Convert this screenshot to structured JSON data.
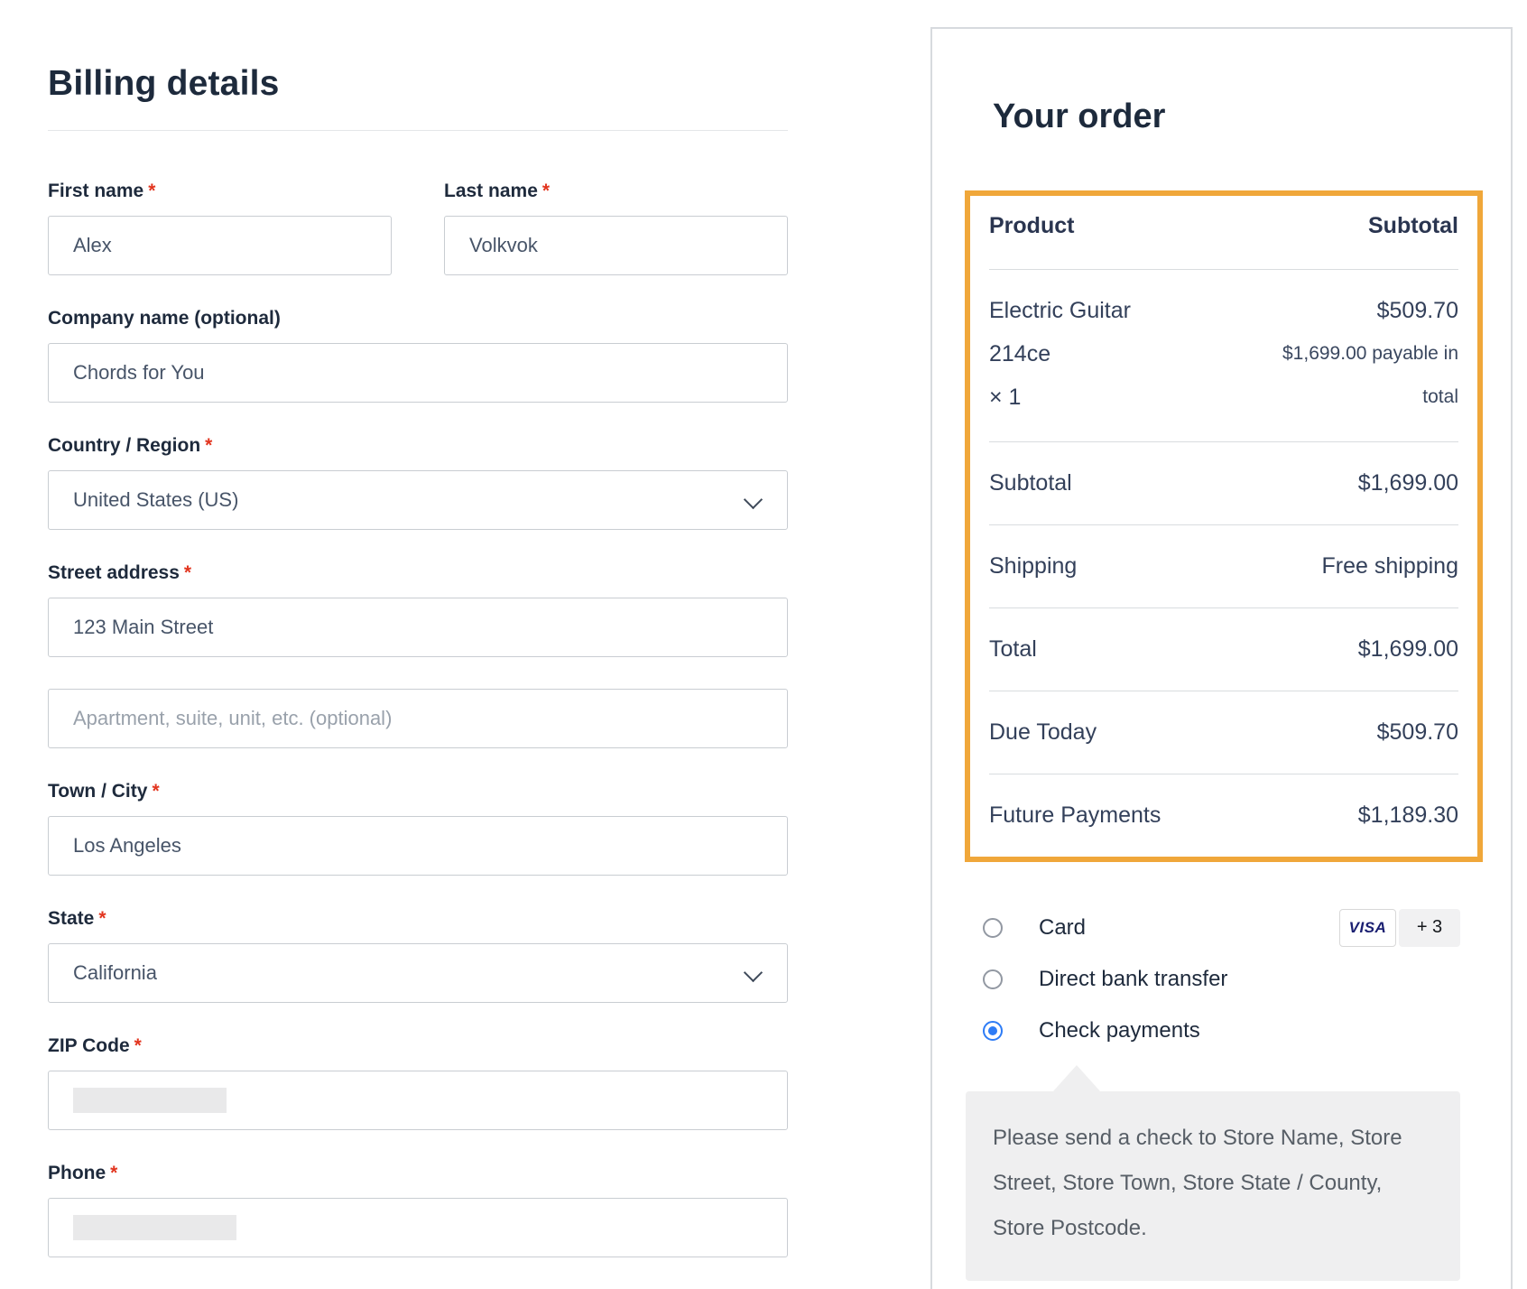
{
  "colors": {
    "accent_orange": "#f0a73a",
    "radio_selected_blue": "#2e7cf6",
    "required_red": "#e2351f",
    "visa_navy": "#1a1f71",
    "heading_navy": "#1d2a3c"
  },
  "billing": {
    "title": "Billing details",
    "required_mark": "*",
    "fields": [
      {
        "id": "first-name",
        "label": "First name",
        "required": true,
        "type": "text",
        "value": "Alex"
      },
      {
        "id": "last-name",
        "label": "Last name",
        "required": true,
        "type": "text",
        "value": "Volkvok"
      },
      {
        "id": "company",
        "label": "Company name (optional)",
        "required": false,
        "type": "text",
        "value": "Chords for You"
      },
      {
        "id": "country",
        "label": "Country / Region",
        "required": true,
        "type": "select",
        "value": "United States (US)"
      },
      {
        "id": "address-1",
        "label": "Street address",
        "required": true,
        "type": "text",
        "value": "123 Main Street"
      },
      {
        "id": "address-2",
        "label": "",
        "required": false,
        "type": "text",
        "value": "",
        "placeholder": "Apartment, suite, unit, etc. (optional)"
      },
      {
        "id": "city",
        "label": "Town / City",
        "required": true,
        "type": "text",
        "value": "Los Angeles"
      },
      {
        "id": "state",
        "label": "State",
        "required": true,
        "type": "select",
        "value": "California"
      },
      {
        "id": "zip",
        "label": "ZIP Code",
        "required": true,
        "type": "text",
        "value": "",
        "redacted": true
      },
      {
        "id": "phone",
        "label": "Phone",
        "required": true,
        "type": "text",
        "value": "",
        "redacted": true
      }
    ]
  },
  "order": {
    "title": "Your order",
    "columns": {
      "product": "Product",
      "subtotal": "Subtotal"
    },
    "item": {
      "name_line1": "Electric Guitar",
      "name_line2": "214ce",
      "qty_line": "× 1",
      "price": "$509.70",
      "note_line1": "$1,699.00 payable in",
      "note_line2": "total"
    },
    "totals": [
      {
        "label": "Subtotal",
        "value": "$1,699.00"
      },
      {
        "label": "Shipping",
        "value": "Free shipping"
      },
      {
        "label": "Total",
        "value": "$1,699.00"
      },
      {
        "label": "Due Today",
        "value": "$509.70"
      },
      {
        "label": "Future Payments",
        "value": "$1,189.30"
      }
    ]
  },
  "payment": {
    "methods": [
      {
        "label": "Card",
        "selected": false
      },
      {
        "label": "Direct bank transfer",
        "selected": false
      },
      {
        "label": "Check payments",
        "selected": true
      }
    ],
    "card_badges": {
      "visa": "VISA",
      "more": "+ 3"
    },
    "check_note": "Please send a check to Store Name, Store Street, Store Town, Store State / County, Store Postcode."
  }
}
